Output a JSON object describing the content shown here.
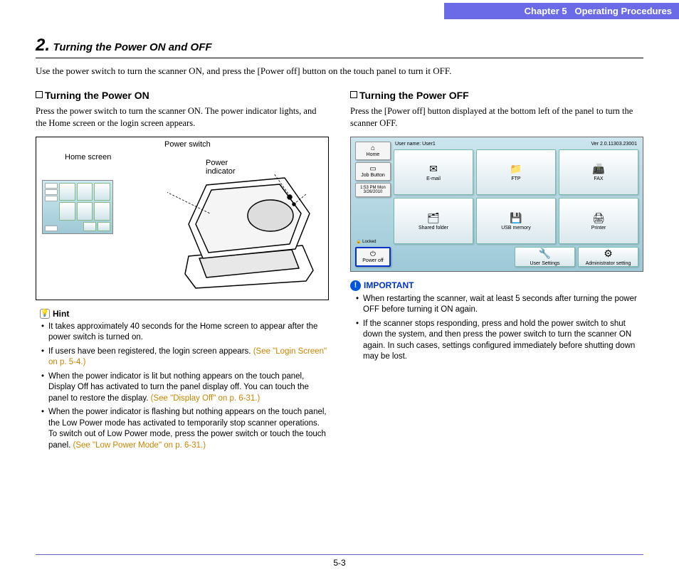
{
  "header": {
    "chapter": "Chapter 5",
    "title": "Operating Procedures"
  },
  "section": {
    "number": "2.",
    "title": "Turning the Power ON and OFF"
  },
  "intro": "Use the power switch to turn the scanner ON, and press the [Power off] button on the touch panel to turn it OFF.",
  "left": {
    "heading": "Turning the Power ON",
    "body": "Press the power switch to turn the scanner ON. The power indicator lights, and the Home screen or the login screen appears.",
    "labels": {
      "home": "Home screen",
      "switch": "Power switch",
      "indicator": "Power indicator"
    },
    "hint_label": "Hint",
    "hints": [
      {
        "t": "It takes approximately 40 seconds for the Home screen to appear after the power switch is turned on."
      },
      {
        "t": "If users have been registered, the login screen appears. ",
        "link": "(See \"Login Screen\" on p. 5-4.)"
      },
      {
        "t": "When the power indicator is lit but nothing appears on the touch panel, Display Off has activated to turn the panel display off. You can touch the panel to restore the display. ",
        "link": "(See \"Display Off\" on p. 6-31.)"
      },
      {
        "t": "When the power indicator is flashing but nothing appears on the touch panel, the Low Power mode has activated to temporarily stop scanner operations. To switch out of Low Power mode, press the power switch or touch the touch panel. ",
        "link": "(See \"Low Power Mode\" on p. 6-31.)"
      }
    ]
  },
  "right": {
    "heading": "Turning the Power OFF",
    "body": "Press the [Power off] button displayed at the bottom left of the panel to turn the scanner OFF.",
    "touch": {
      "user": "User name: User1",
      "ver": "Ver 2.0.11303.23001",
      "side": [
        "Home",
        "Job Button",
        "1:53 PM Mon 3/26/2010",
        "",
        "Power off"
      ],
      "row1": [
        "E-mail",
        "FTP",
        "FAX"
      ],
      "row2": [
        "Shared folder",
        "USB memory",
        "Printer"
      ],
      "bot": [
        "User Settings",
        "Administrator setting"
      ],
      "icons1": [
        "✉",
        "📁",
        "📠"
      ],
      "icons2": [
        "🗂",
        "💾",
        "🖨"
      ]
    },
    "imp_label": "IMPORTANT",
    "important": [
      "When restarting the scanner, wait at least 5 seconds after turning the power OFF before turning it ON again.",
      "If the scanner stops responding, press and hold the power switch to shut down the system, and then press the power switch to turn the scanner ON again. In such cases, settings configured immediately before shutting down may be lost."
    ]
  },
  "footer": "5-3",
  "colors": {
    "header_bg": "#6b6be8",
    "link": "#cc8400",
    "important": "#0033cc",
    "footer_rule": "#6565c9"
  }
}
